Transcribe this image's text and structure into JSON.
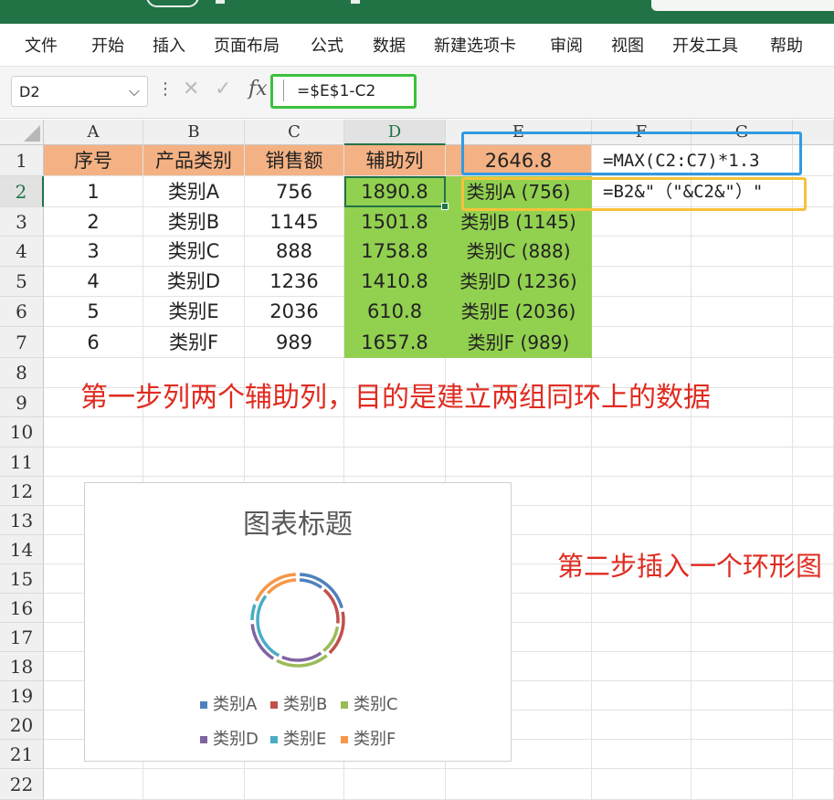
{
  "menu": [
    "文件",
    "开始",
    "插入",
    "页面布局",
    "公式",
    "数据",
    "新建选项卡",
    "审阅",
    "视图",
    "开发工具",
    "帮助"
  ],
  "formula_bar": {
    "name_box": "D2",
    "formula": "=$E$1-C2",
    "cancel_icon": "close-icon",
    "confirm_icon": "check-icon",
    "fx_label": "fx"
  },
  "columns": [
    "A",
    "B",
    "C",
    "D",
    "E",
    "F",
    "G"
  ],
  "rows": [
    "1",
    "2",
    "3",
    "4",
    "5",
    "6",
    "7",
    "8",
    "9",
    "10",
    "11",
    "12",
    "13",
    "14",
    "15",
    "16",
    "17",
    "18",
    "19",
    "20",
    "21",
    "22"
  ],
  "sheet": {
    "header": {
      "a": "序号",
      "b": "产品类别",
      "c": "销售额",
      "d": "辅助列",
      "e": "2646.8",
      "f": "=MAX(C2:C7)*1.3"
    },
    "formula_e": "=B2&\"（\"&C2&\"）\"",
    "data": [
      {
        "no": "1",
        "cat": "类别A",
        "sales": "756",
        "aux": "1890.8",
        "label": "类别A (756)"
      },
      {
        "no": "2",
        "cat": "类别B",
        "sales": "1145",
        "aux": "1501.8",
        "label": "类别B (1145)"
      },
      {
        "no": "3",
        "cat": "类别C",
        "sales": "888",
        "aux": "1758.8",
        "label": "类别C (888)"
      },
      {
        "no": "4",
        "cat": "类别D",
        "sales": "1236",
        "aux": "1410.8",
        "label": "类别D (1236)"
      },
      {
        "no": "5",
        "cat": "类别E",
        "sales": "2036",
        "aux": "610.8",
        "label": "类别E (2036)"
      },
      {
        "no": "6",
        "cat": "类别F",
        "sales": "989",
        "aux": "1657.8",
        "label": "类别F (989)"
      }
    ]
  },
  "annotations": {
    "step1": "第一步列两个辅助列，目的是建立两组同环上的数据",
    "step2": "第二步插入一个环形图"
  },
  "chart": {
    "title": "图表标题",
    "legend": [
      {
        "label": "类别A",
        "color": "#4f81bd"
      },
      {
        "label": "类别B",
        "color": "#c0504d"
      },
      {
        "label": "类别C",
        "color": "#9bbb59"
      },
      {
        "label": "类别D",
        "color": "#8064a2"
      },
      {
        "label": "类别E",
        "color": "#4bacc6"
      },
      {
        "label": "类别F",
        "color": "#f79646"
      }
    ],
    "colors": [
      "#4f81bd",
      "#c0504d",
      "#9bbb59",
      "#8064a2",
      "#4bacc6",
      "#f79646"
    ],
    "outer_ring": [
      1890.8,
      1501.8,
      1758.8,
      1410.8,
      610.8,
      1657.8
    ],
    "inner_ring": [
      756,
      1145,
      888,
      1236,
      2036,
      989
    ]
  }
}
